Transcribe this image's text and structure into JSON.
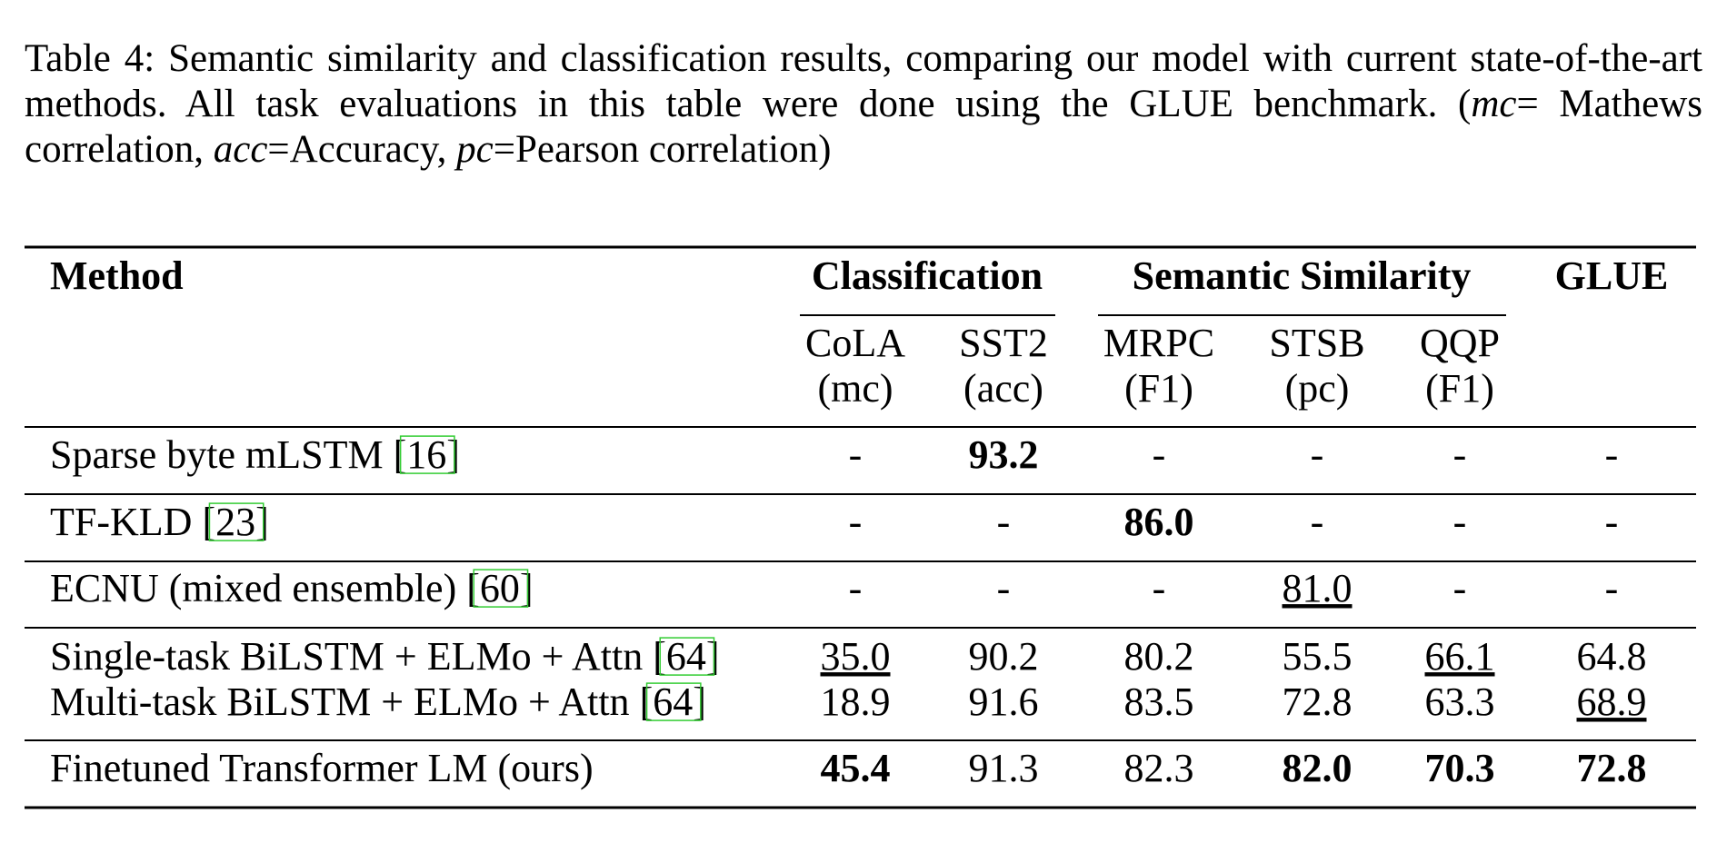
{
  "caption": [
    "Table 4: Semantic similarity and classification results, comparing our model with current state-of-the-art methods. All task evaluations in this table were done using the GLUE benchmark. (",
    "mc",
    "= Mathews correlation, ",
    "acc",
    "=Accuracy, ",
    "pc",
    "=Pearson correlation)"
  ],
  "table": {
    "header": {
      "method": "Method",
      "groups": [
        "Classification",
        "Semantic Similarity",
        "GLUE"
      ],
      "columns": [
        [
          "CoLA",
          "(mc)"
        ],
        [
          "SST2",
          "(acc)"
        ],
        [
          "MRPC",
          "(F1)"
        ],
        [
          "STSB",
          "(pc)"
        ],
        [
          "QQP",
          "(F1)"
        ]
      ]
    },
    "rows": [
      {
        "method": "Sparse byte mLSTM",
        "ref": "[16]",
        "cells": [
          "-",
          "93.2",
          "-",
          "-",
          "-",
          "-"
        ]
      },
      {
        "method": "TF-KLD",
        "ref": "[23]",
        "cells": [
          "-",
          "-",
          "86.0",
          "-",
          "-",
          "-"
        ]
      },
      {
        "method": "ECNU (mixed ensemble)",
        "ref": "[60]",
        "cells": [
          "-",
          "-",
          "-",
          "81.0",
          "-",
          "-"
        ]
      },
      {
        "method": "Single-task BiLSTM + ELMo + Attn",
        "ref": "[64]",
        "cells": [
          "35.0",
          "90.2",
          "80.2",
          "55.5",
          "66.1",
          "64.8"
        ]
      },
      {
        "method": "Multi-task BiLSTM + ELMo + Attn",
        "ref": "[64]",
        "cells": [
          "18.9",
          "91.6",
          "83.5",
          "72.8",
          "63.3",
          "68.9"
        ]
      },
      {
        "method": "Finetuned Transformer LM (ours)",
        "cells": [
          "45.4",
          "91.3",
          "82.3",
          "82.0",
          "70.3",
          "72.8"
        ]
      }
    ]
  }
}
